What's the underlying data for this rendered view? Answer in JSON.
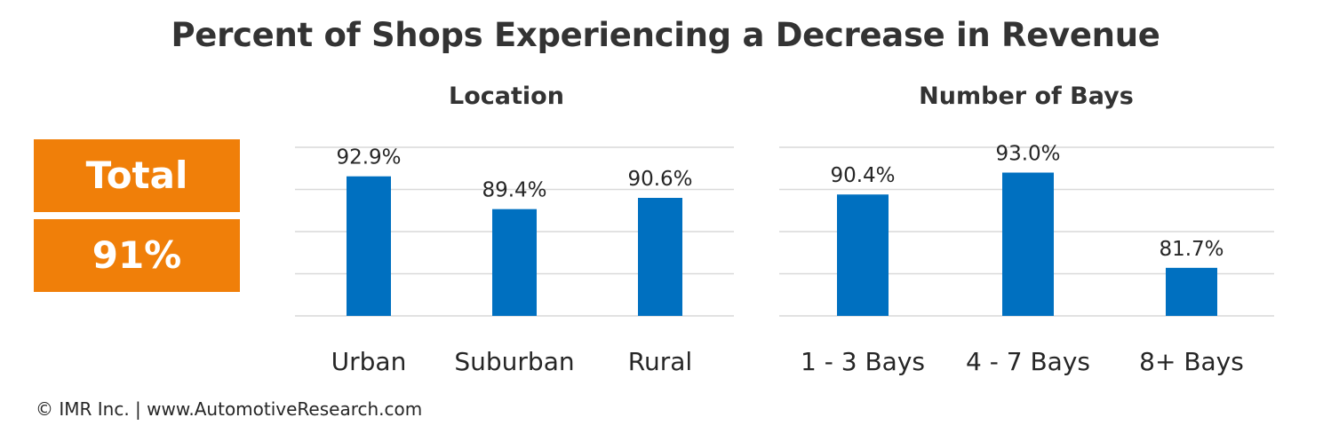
{
  "title": "Percent of Shops Experiencing a Decrease in Revenue",
  "total": {
    "label": "Total",
    "value": "91%",
    "color": "#f07f09"
  },
  "footer": "© IMR Inc. | www.AutomotiveResearch.com",
  "colors": {
    "bar": "#0070c0",
    "gridline": "#d9d9d9",
    "text": "#262626"
  },
  "chart_data": [
    {
      "type": "bar",
      "title": "Location",
      "categories": [
        "Urban",
        "Suburban",
        "Rural"
      ],
      "values": [
        92.9,
        89.4,
        90.6
      ],
      "data_labels": [
        "92.9%",
        "89.4%",
        "90.6%"
      ],
      "ylim": [
        78,
        96
      ],
      "grid": true,
      "legend": "none"
    },
    {
      "type": "bar",
      "title": "Number of Bays",
      "categories": [
        "1 - 3 Bays",
        "4 - 7 Bays",
        "8+ Bays"
      ],
      "values": [
        90.4,
        93.0,
        81.7
      ],
      "data_labels": [
        "90.4%",
        "93.0%",
        "81.7%"
      ],
      "ylim": [
        76,
        96
      ],
      "grid": true,
      "legend": "none"
    }
  ]
}
